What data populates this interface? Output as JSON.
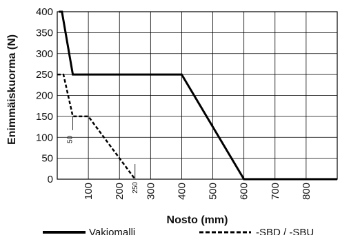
{
  "chart_data": {
    "type": "line",
    "xlabel": "Nosto (mm)",
    "ylabel": "Enimmäiskuorma (N)",
    "xlim": [
      0,
      900
    ],
    "ylim": [
      0,
      400
    ],
    "xticks": [
      "100",
      "200",
      "300",
      "400",
      "500",
      "600",
      "700",
      "800"
    ],
    "yticks": [
      "0",
      "50",
      "100",
      "150",
      "200",
      "250",
      "300",
      "350",
      "400"
    ],
    "grid": true,
    "legend_position": "bottom",
    "series": [
      {
        "name": "Vakiomalli",
        "style": "solid",
        "points": [
          [
            5,
            400
          ],
          [
            15,
            400
          ],
          [
            50,
            250
          ],
          [
            400,
            250
          ],
          [
            600,
            0
          ],
          [
            900,
            0
          ]
        ]
      },
      {
        "name": "-SBD / -SBU",
        "style": "dashed",
        "points": [
          [
            0,
            250
          ],
          [
            20,
            250
          ],
          [
            50,
            150
          ],
          [
            100,
            150
          ],
          [
            250,
            0
          ]
        ]
      }
    ],
    "annotations": [
      {
        "text": "50",
        "x": 50,
        "y": 150
      },
      {
        "text": "250",
        "x": 250,
        "y": 0
      }
    ]
  }
}
